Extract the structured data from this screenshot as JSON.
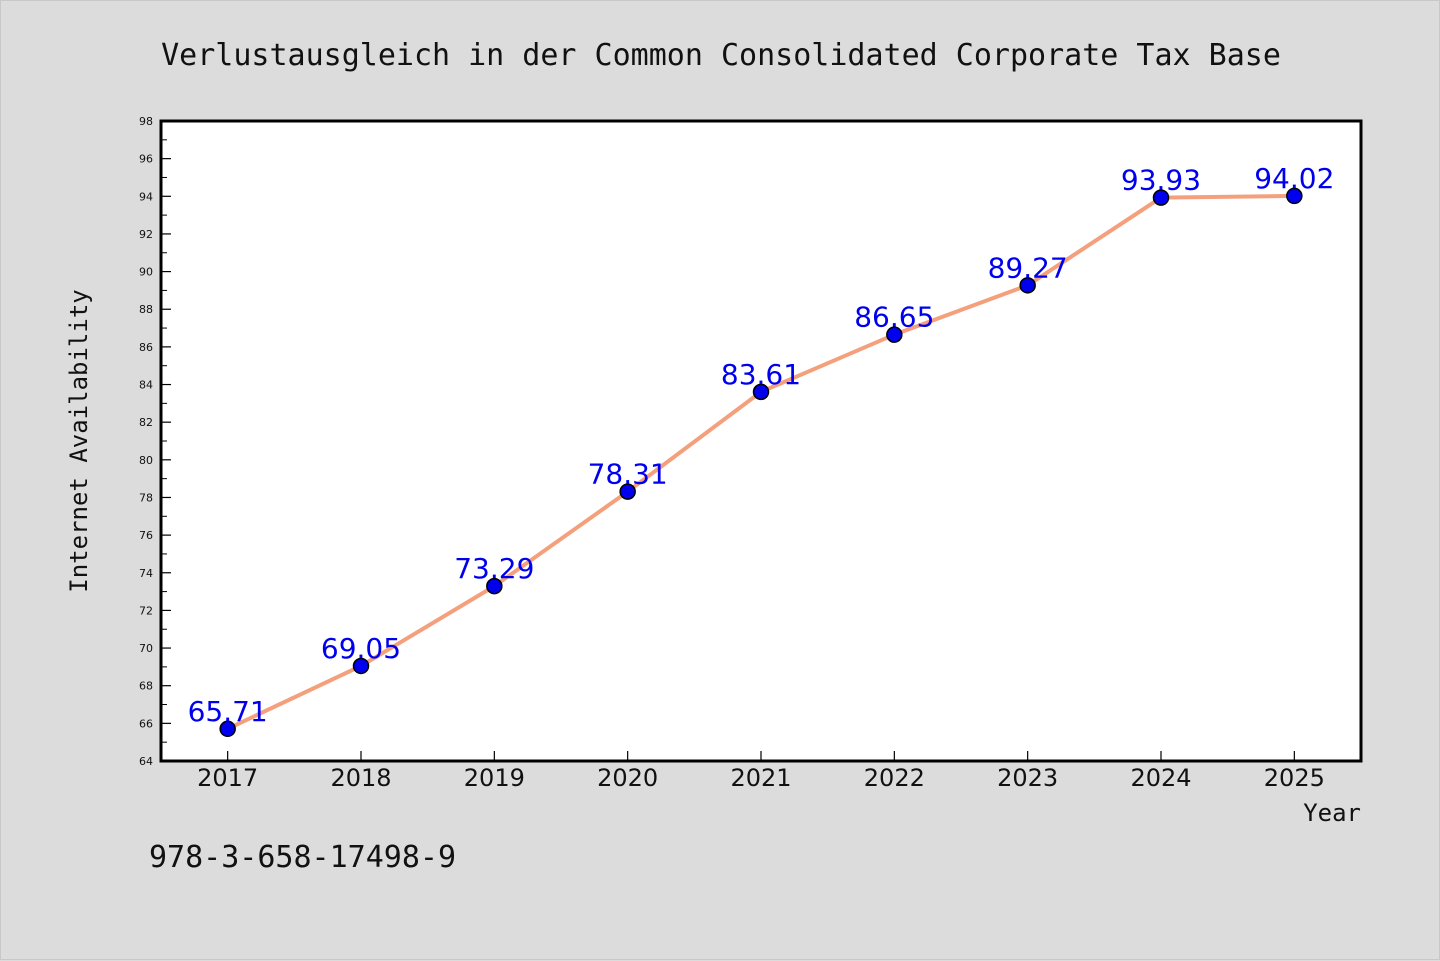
{
  "chart_data": {
    "type": "line",
    "title": "Verlustausgleich in der Common Consolidated Corporate Tax Base",
    "xlabel": "Year",
    "ylabel": "Internet Availability",
    "x": [
      "2017",
      "2018",
      "2019",
      "2020",
      "2021",
      "2022",
      "2023",
      "2024",
      "2025"
    ],
    "x_display_range": [
      2016.5,
      2025.5
    ],
    "values": [
      65.71,
      69.05,
      73.29,
      78.31,
      83.61,
      86.65,
      89.27,
      93.93,
      94.02
    ],
    "value_labels": [
      "65.71",
      "69.05",
      "73.29",
      "78.31",
      "83.61",
      "86.65",
      "89.27",
      "93.93",
      "94.02"
    ],
    "ylim": [
      64,
      98
    ],
    "yticks": [
      "64",
      "66",
      "68",
      "70",
      "72",
      "74",
      "76",
      "78",
      "80",
      "82",
      "84",
      "86",
      "88",
      "90",
      "92",
      "94",
      "96",
      "98"
    ],
    "grid": false,
    "line_color": "#f4a07c",
    "marker_color": "#0000ee",
    "label_color": "#0000ee",
    "footer_text": "978-3-658-17498-9"
  }
}
